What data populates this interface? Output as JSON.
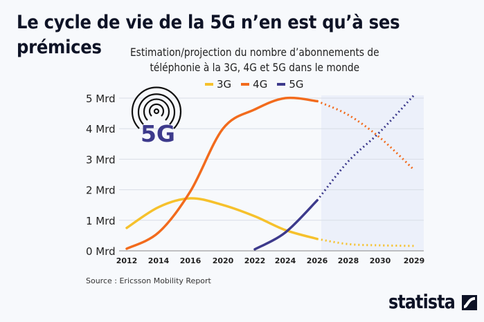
{
  "header": {
    "title_line1": "Le cycle de vie de la 5G n’en est qu’à ses",
    "title_line2": "prémices",
    "subtitle": "Estimation/projection du nombre d’abonnements de téléphonie à la 3G, 4G et 5G dans le monde"
  },
  "badge": {
    "label": "5G",
    "icon": "signal-broadcast-icon",
    "color": "#3d3a8c"
  },
  "footer": {
    "source": "Source : Ericsson Mobility Report",
    "logo": "statista"
  },
  "chart_data": {
    "type": "line",
    "categories": [
      "2012",
      "2014",
      "2016",
      "2020",
      "2022",
      "2024",
      "2026",
      "2028",
      "2030",
      "2029"
    ],
    "yticks": [
      "0 Mrd",
      "1 Mrd",
      "2 Mrd",
      "3 Mrd",
      "4 Mrd",
      "5 Mrd"
    ],
    "ylim": [
      0,
      5
    ],
    "yunit": "Mrd",
    "grid": true,
    "legend": "top",
    "forecast_from": "2026",
    "series": [
      {
        "name": "3G",
        "color": "#f6c12c",
        "values": [
          0.75,
          1.43,
          1.72,
          1.5,
          1.13,
          0.68,
          0.39,
          0.22,
          0.18,
          0.16
        ]
      },
      {
        "name": "4G",
        "color": "#f26b1d",
        "values": [
          0.07,
          0.6,
          1.95,
          4.0,
          4.63,
          5.0,
          4.9,
          4.45,
          3.7,
          2.65
        ]
      },
      {
        "name": "5G",
        "color": "#3d3a8c",
        "values": [
          null,
          null,
          null,
          null,
          0.05,
          0.6,
          1.65,
          2.93,
          3.9,
          5.1
        ]
      }
    ]
  }
}
